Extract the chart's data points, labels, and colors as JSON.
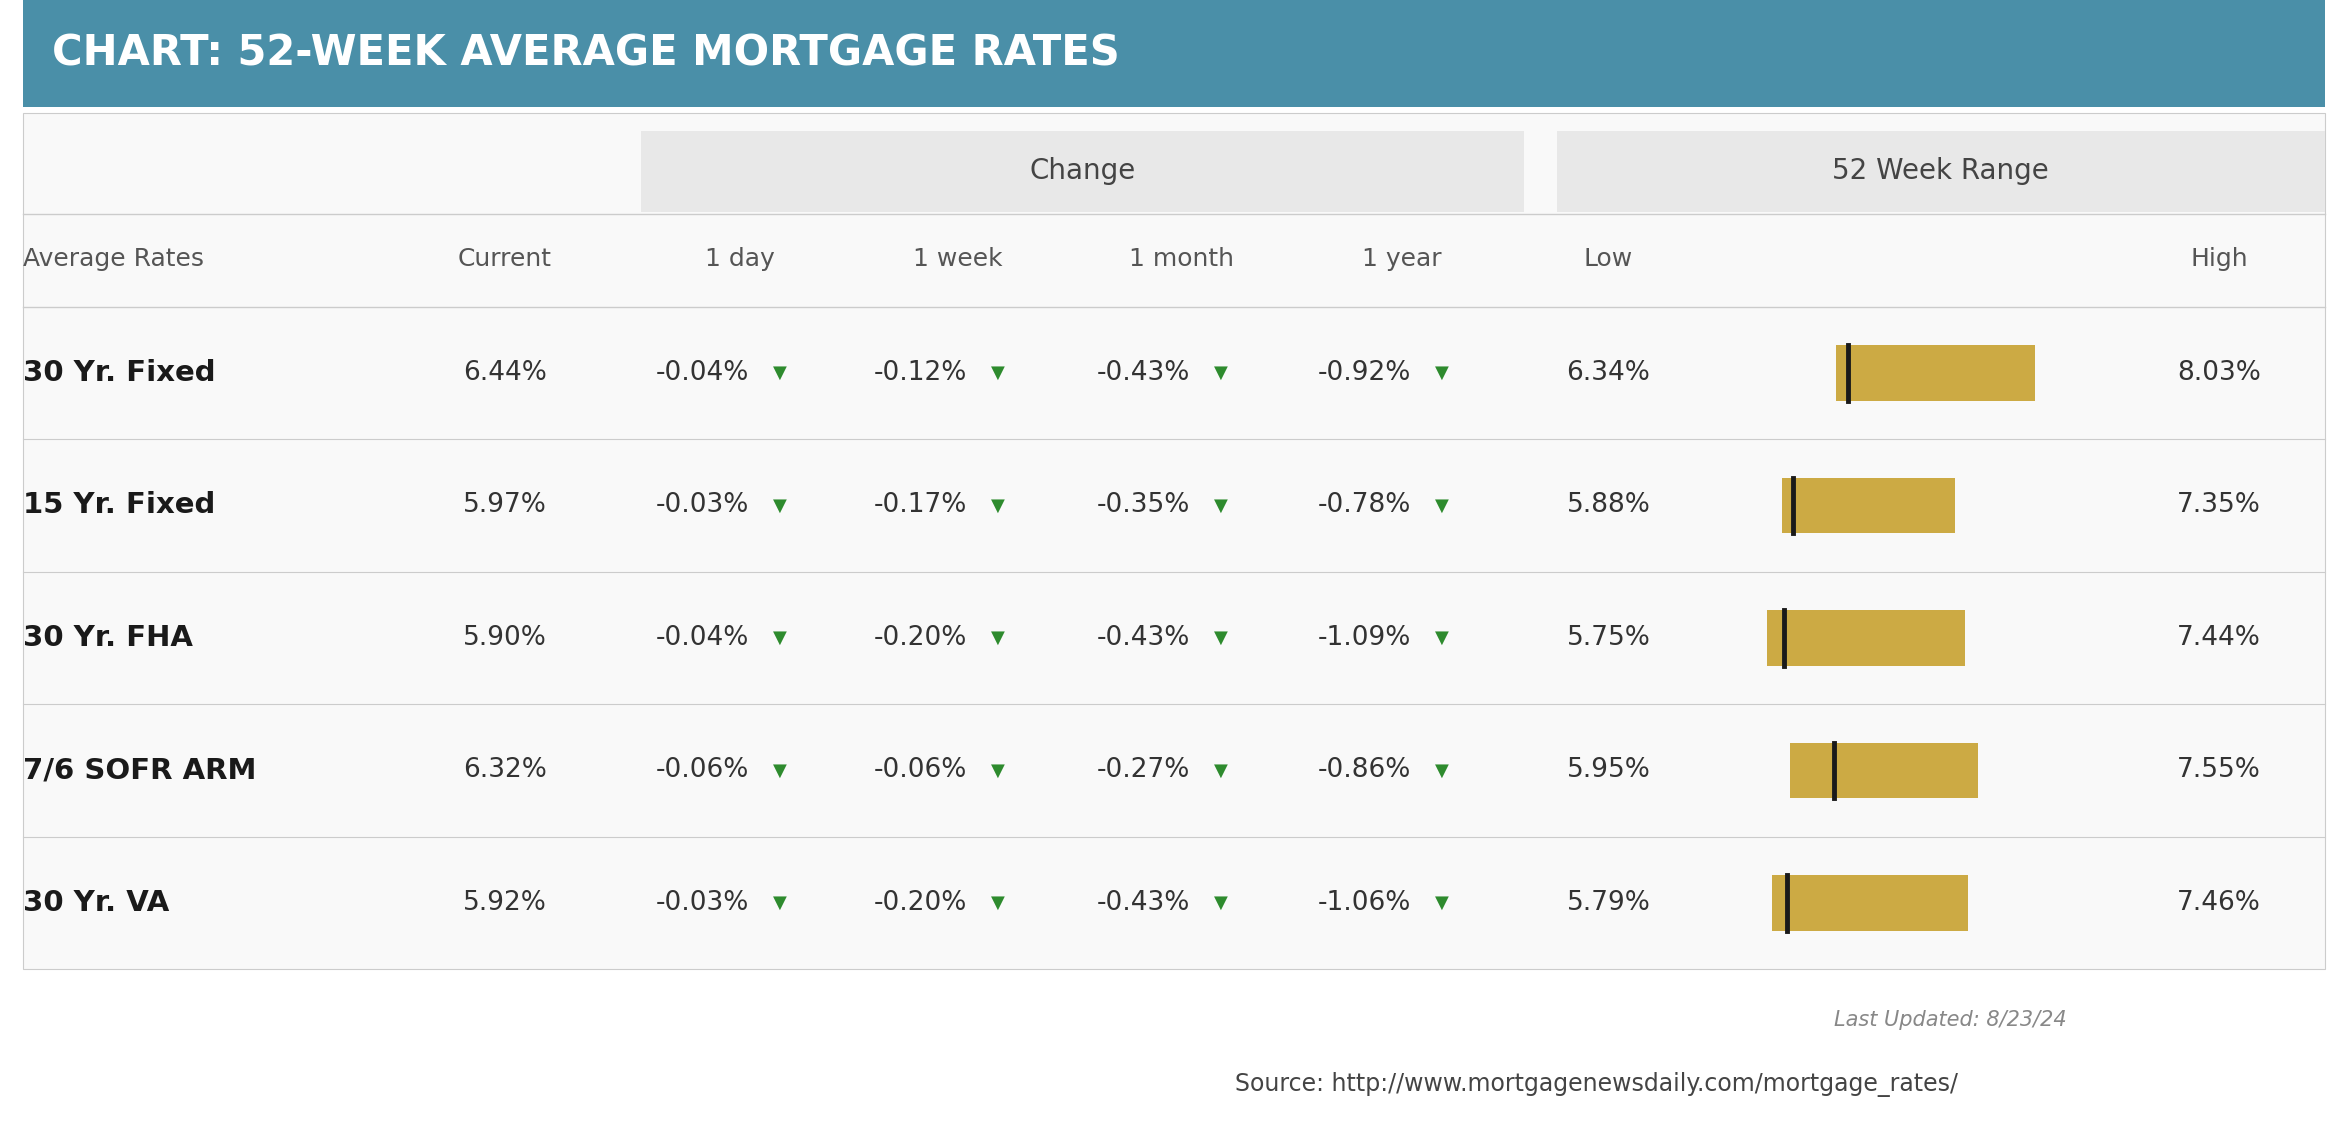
{
  "title": "CHART: 52-WEEK AVERAGE MORTGAGE RATES",
  "title_bg": "#4a8fa8",
  "title_color": "#ffffff",
  "header_group1": "Change",
  "header_group2": "52 Week Range",
  "rows": [
    {
      "label": "30 Yr. Fixed",
      "current": "6.44%",
      "day": "-0.04%",
      "week": "-0.12%",
      "month": "-0.43%",
      "year": "-0.92%",
      "low": "6.34%",
      "high": "8.03%",
      "bar_low": 6.34,
      "bar_high": 8.03,
      "current_val": 6.44
    },
    {
      "label": "15 Yr. Fixed",
      "current": "5.97%",
      "day": "-0.03%",
      "week": "-0.17%",
      "month": "-0.35%",
      "year": "-0.78%",
      "low": "5.88%",
      "high": "7.35%",
      "bar_low": 5.88,
      "bar_high": 7.35,
      "current_val": 5.97
    },
    {
      "label": "30 Yr. FHA",
      "current": "5.90%",
      "day": "-0.04%",
      "week": "-0.20%",
      "month": "-0.43%",
      "year": "-1.09%",
      "low": "5.75%",
      "high": "7.44%",
      "bar_low": 5.75,
      "bar_high": 7.44,
      "current_val": 5.9
    },
    {
      "label": "7/6 SOFR ARM",
      "current": "6.32%",
      "day": "-0.06%",
      "week": "-0.06%",
      "month": "-0.27%",
      "year": "-0.86%",
      "low": "5.95%",
      "high": "7.55%",
      "bar_low": 5.95,
      "bar_high": 7.55,
      "current_val": 6.32
    },
    {
      "label": "30 Yr. VA",
      "current": "5.92%",
      "day": "-0.03%",
      "week": "-0.20%",
      "month": "-0.43%",
      "year": "-1.06%",
      "low": "5.79%",
      "high": "7.46%",
      "bar_low": 5.79,
      "bar_high": 7.46,
      "current_val": 5.92
    }
  ],
  "bar_color": "#ccaa44",
  "marker_color": "#1a1a1a",
  "arrow_color": "#2e8b2e",
  "bg_color": "#ffffff",
  "separator_color": "#cccccc",
  "source_text": "Source: http://www.mortgagenewsdaily.com/mortgage_rates/",
  "last_updated": "Last Updated: 8/23/24",
  "overall_min": 5.5,
  "overall_max": 8.3
}
